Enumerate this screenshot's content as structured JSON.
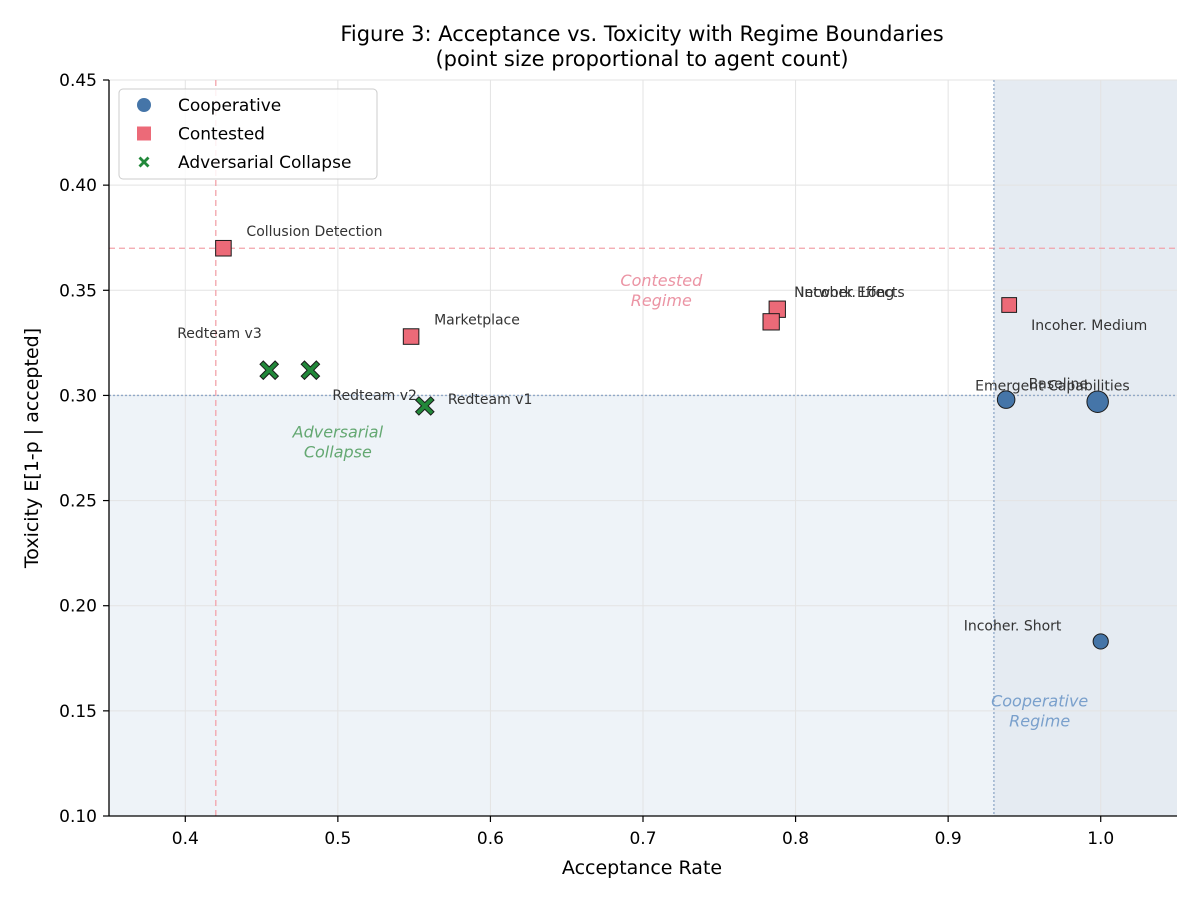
{
  "chart_data": {
    "type": "scatter",
    "title": "Figure 3: Acceptance vs. Toxicity with Regime Boundaries",
    "subtitle": "(point size proportional to agent count)",
    "xlabel": "Acceptance Rate",
    "ylabel": "Toxicity E[1-p | accepted]",
    "xlim": [
      0.35,
      1.05
    ],
    "ylim": [
      0.1,
      0.45
    ],
    "xticks": [
      0.4,
      0.5,
      0.6,
      0.7,
      0.8,
      0.9,
      1.0
    ],
    "xtick_labels": [
      "0.4",
      "0.5",
      "0.6",
      "0.7",
      "0.8",
      "0.9",
      "1.0"
    ],
    "yticks": [
      0.1,
      0.15,
      0.2,
      0.25,
      0.3,
      0.35,
      0.4,
      0.45
    ],
    "ytick_labels": [
      "0.10",
      "0.15",
      "0.20",
      "0.25",
      "0.30",
      "0.35",
      "0.40",
      "0.45"
    ],
    "grid": true,
    "legend_position": "top-left",
    "series": [
      {
        "name": "Cooperative",
        "marker": "circle",
        "color": "#4575a8",
        "points": [
          {
            "label": "Emergent Capabilities",
            "x": 0.938,
            "y": 0.298,
            "size": 2
          },
          {
            "label": "Baseline",
            "x": 0.998,
            "y": 0.297,
            "size": 3
          },
          {
            "label": "Incoher. Short",
            "x": 1.0,
            "y": 0.183,
            "size": 1.5
          }
        ]
      },
      {
        "name": "Contested",
        "marker": "square",
        "color": "#ec6a78",
        "points": [
          {
            "label": "Collusion Detection",
            "x": 0.425,
            "y": 0.37,
            "size": 2
          },
          {
            "label": "Marketplace",
            "x": 0.548,
            "y": 0.328,
            "size": 2
          },
          {
            "label": "Incoher. Long",
            "x": 0.788,
            "y": 0.341,
            "size": 2.2
          },
          {
            "label": "Network Effects",
            "x": 0.784,
            "y": 0.335,
            "size": 2.2
          },
          {
            "label": "Incoher. Medium",
            "x": 0.94,
            "y": 0.343,
            "size": 1.8
          }
        ]
      },
      {
        "name": "Adversarial Collapse",
        "marker": "x",
        "color": "#22883a",
        "points": [
          {
            "label": "Redteam v3",
            "x": 0.455,
            "y": 0.312,
            "size": 2
          },
          {
            "label": "Redteam v2",
            "x": 0.482,
            "y": 0.312,
            "size": 2
          },
          {
            "label": "Redteam v1",
            "x": 0.557,
            "y": 0.295,
            "size": 2
          }
        ]
      }
    ],
    "reference_lines": [
      {
        "orientation": "horizontal",
        "value": 0.37,
        "color": "#f2a2aa",
        "style": "dashed"
      },
      {
        "orientation": "vertical",
        "value": 0.42,
        "color": "#f2a2aa",
        "style": "dashed"
      },
      {
        "orientation": "horizontal",
        "value": 0.3,
        "color": "#8fa8c8",
        "style": "dotted"
      },
      {
        "orientation": "vertical",
        "value": 0.93,
        "color": "#8fa8c8",
        "style": "dotted"
      }
    ],
    "regions": [
      {
        "x0": 0.35,
        "x1": 1.05,
        "y0": 0.1,
        "y1": 0.3,
        "color": "#eef3f8"
      },
      {
        "x0": 0.93,
        "x1": 1.05,
        "y0": 0.1,
        "y1": 0.45,
        "color": "#e5ebf2"
      }
    ],
    "annotations": [
      {
        "text": "Contested",
        "text2": "Regime",
        "x": 0.712,
        "y": 0.352,
        "color": "#eb94a4"
      },
      {
        "text": "Adversarial",
        "text2": "Collapse",
        "x": 0.5,
        "y": 0.28,
        "color": "#64a872"
      },
      {
        "text": "Cooperative",
        "text2": "Regime",
        "x": 0.96,
        "y": 0.152,
        "color": "#7aa0cc"
      }
    ]
  }
}
